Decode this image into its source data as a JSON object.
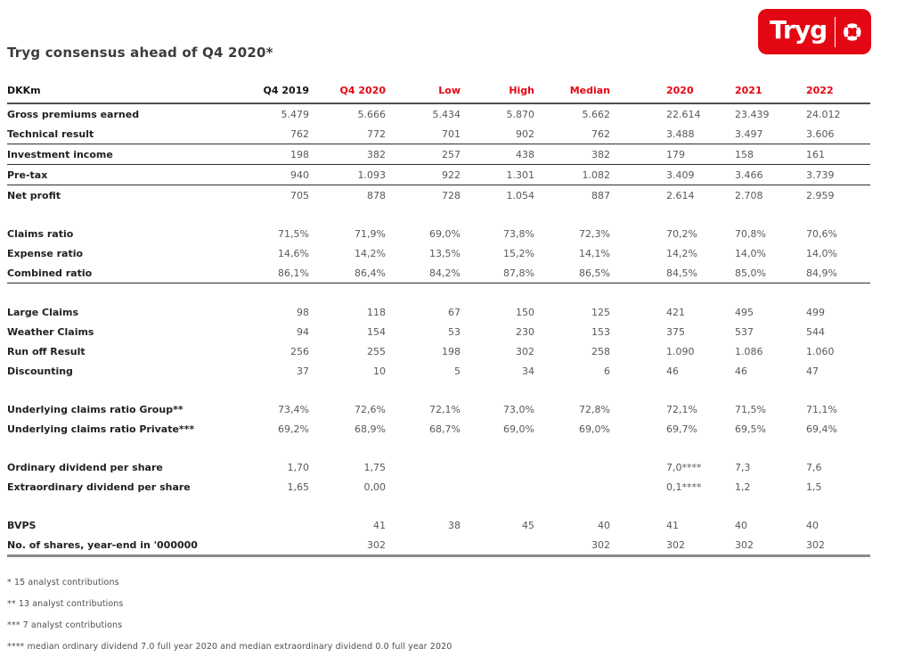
{
  "title": "Tryg consensus ahead of Q4 2020*",
  "logo": {
    "wordmark": "Tryg",
    "icon": "lifebuoy-icon",
    "brand_color": "#e30613"
  },
  "table": {
    "columns": [
      {
        "label": "DKKm",
        "color": "black",
        "align": "left"
      },
      {
        "label": "Q4 2019",
        "color": "black",
        "align": "right"
      },
      {
        "label": "Q4 2020",
        "color": "red",
        "align": "right"
      },
      {
        "label": "Low",
        "color": "red",
        "align": "right"
      },
      {
        "label": "High",
        "color": "red",
        "align": "right"
      },
      {
        "label": "Median",
        "color": "red",
        "align": "right"
      },
      {
        "label": "2020",
        "color": "red",
        "align": "left"
      },
      {
        "label": "2021",
        "color": "red",
        "align": "left"
      },
      {
        "label": "2022",
        "color": "red",
        "align": "left"
      }
    ],
    "rows": [
      {
        "label": "Gross premiums earned",
        "values": [
          "5.479",
          "5.666",
          "5.434",
          "5.870",
          "5.662",
          "22.614",
          "23.439",
          "24.012"
        ]
      },
      {
        "label": "Technical result",
        "values": [
          "762",
          "772",
          "701",
          "902",
          "762",
          "3.488",
          "3.497",
          "3.606"
        ],
        "rule_after": true
      },
      {
        "label": "Investment income",
        "values": [
          "198",
          "382",
          "257",
          "438",
          "382",
          "179",
          "158",
          "161"
        ],
        "rule_after": true
      },
      {
        "label": "Pre-tax",
        "values": [
          "940",
          "1.093",
          "922",
          "1.301",
          "1.082",
          "3.409",
          "3.466",
          "3.739"
        ],
        "rule_after": true
      },
      {
        "label": "Net profit",
        "values": [
          "705",
          "878",
          "728",
          "1.054",
          "887",
          "2.614",
          "2.708",
          "2.959"
        ]
      },
      {
        "label": "Claims ratio",
        "values": [
          "71,5%",
          "71,9%",
          "69,0%",
          "73,8%",
          "72,3%",
          "70,2%",
          "70,8%",
          "70,6%"
        ],
        "gap_before": true
      },
      {
        "label": "Expense ratio",
        "values": [
          "14,6%",
          "14,2%",
          "13,5%",
          "15,2%",
          "14,1%",
          "14,2%",
          "14,0%",
          "14,0%"
        ]
      },
      {
        "label": "Combined ratio",
        "values": [
          "86,1%",
          "86,4%",
          "84,2%",
          "87,8%",
          "86,5%",
          "84,5%",
          "85,0%",
          "84,9%"
        ],
        "rule_after": true
      },
      {
        "label": "Large Claims",
        "values": [
          "98",
          "118",
          "67",
          "150",
          "125",
          "421",
          "495",
          "499"
        ],
        "gap_before": true
      },
      {
        "label": "Weather Claims",
        "values": [
          "94",
          "154",
          "53",
          "230",
          "153",
          "375",
          "537",
          "544"
        ]
      },
      {
        "label": "Run off Result",
        "values": [
          "256",
          "255",
          "198",
          "302",
          "258",
          "1.090",
          "1.086",
          "1.060"
        ]
      },
      {
        "label": "Discounting",
        "values": [
          "37",
          "10",
          "5",
          "34",
          "6",
          "46",
          "46",
          "47"
        ]
      },
      {
        "label": "Underlying claims ratio Group**",
        "values": [
          "73,4%",
          "72,6%",
          "72,1%",
          "73,0%",
          "72,8%",
          "72,1%",
          "71,5%",
          "71,1%"
        ],
        "gap_before": true
      },
      {
        "label": "Underlying claims ratio Private***",
        "values": [
          "69,2%",
          "68,9%",
          "68,7%",
          "69,0%",
          "69,0%",
          "69,7%",
          "69,5%",
          "69,4%"
        ]
      },
      {
        "label": "Ordinary dividend per share",
        "values": [
          "1,70",
          "1,75",
          "",
          "",
          "",
          "7,0****",
          "7,3",
          "7,6"
        ],
        "gap_before": true
      },
      {
        "label": "Extraordinary dividend per share",
        "values": [
          "1,65",
          "0,00",
          "",
          "",
          "",
          "0,1****",
          "1,2",
          "1,5"
        ]
      },
      {
        "label": "BVPS",
        "values": [
          "",
          "41",
          "38",
          "45",
          "40",
          "41",
          "40",
          "40"
        ],
        "gap_before": true
      },
      {
        "label": "No. of shares, year-end in '000000",
        "values": [
          "",
          "302",
          "",
          "",
          "302",
          "302",
          "302",
          "302"
        ],
        "thick_rule_after": true
      }
    ]
  },
  "footnotes": [
    "* 15 analyst contributions",
    "** 13 analyst contributions",
    "*** 7 analyst contributions",
    "**** median ordinary dividend 7.0 full year 2020 and median extraordinary dividend 0.0 full year 2020"
  ]
}
